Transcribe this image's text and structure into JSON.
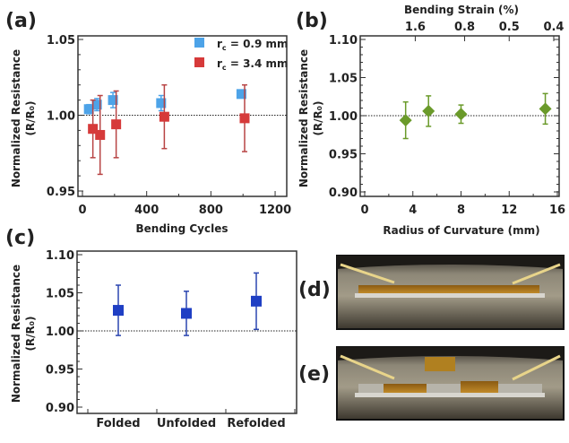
{
  "panel_labels": {
    "a": "(a)",
    "b": "(b)",
    "c": "(c)",
    "d": "(d)",
    "e": "(e)"
  },
  "ylabel": {
    "line1": "Normalized Resistance",
    "line2": "(R/R₀)"
  },
  "chart_data": [
    {
      "id": "a",
      "type": "scatter",
      "xlabel": "Bending Cycles",
      "ylabel": "Normalized Resistance (R/R₀)",
      "xlim": [
        0,
        1250
      ],
      "ylim": [
        0.95,
        1.05
      ],
      "xticks": [
        0,
        400,
        800,
        1200
      ],
      "xtick_labels": [
        "0",
        "400",
        "800",
        "1200"
      ],
      "yticks": [
        0.95,
        1.0,
        1.05
      ],
      "ytick_labels": [
        "0.95",
        "1.00",
        "1.05"
      ],
      "reference_line": 1.0,
      "legend_position": "top-right",
      "series": [
        {
          "name": "r_c = 0.9 mm",
          "legend": {
            "sym": "r",
            "sub": "c",
            "rest": " = 0.9 mm"
          },
          "color": "#4da3e8",
          "marker": "square",
          "x": [
            40,
            90,
            190,
            490,
            990
          ],
          "y": [
            1.004,
            1.007,
            1.01,
            1.008,
            1.014
          ],
          "err": [
            0.003,
            0.004,
            0.005,
            0.005,
            0.002
          ]
        },
        {
          "name": "r_c = 3.4 mm",
          "legend": {
            "sym": "r",
            "sub": "c",
            "rest": " = 3.4 mm"
          },
          "color": "#d63a3a",
          "errcolor": "#b84444",
          "marker": "square",
          "x": [
            65,
            110,
            210,
            510,
            1010
          ],
          "y": [
            0.991,
            0.987,
            0.994,
            0.999,
            0.998
          ],
          "err": [
            0.019,
            0.026,
            0.022,
            0.021,
            0.022
          ]
        }
      ]
    },
    {
      "id": "b",
      "type": "scatter",
      "xlabel": "Radius of Curvature (mm)",
      "x2label": "Bending Strain (%)",
      "ylabel": "Normalized Resistance (R/R₀)",
      "xlim": [
        0,
        16
      ],
      "ylim": [
        0.9,
        1.1
      ],
      "xticks": [
        0,
        4,
        8,
        12,
        16
      ],
      "xtick_labels": [
        "0",
        "4",
        "8",
        "12",
        "16"
      ],
      "x2ticks": [
        4.2,
        8.3,
        12,
        15.7
      ],
      "x2tick_labels": [
        "1.6",
        "0.8",
        "0.5",
        "0.4"
      ],
      "yticks": [
        0.9,
        0.95,
        1.0,
        1.05,
        1.1
      ],
      "ytick_labels": [
        "0.90",
        "0.95",
        "1.00",
        "1.05",
        "1.10"
      ],
      "reference_line": 1.0,
      "series": [
        {
          "color": "#6a9a2a",
          "marker": "diamond",
          "x": [
            3.4,
            5.3,
            8.0,
            15.0
          ],
          "y": [
            0.994,
            1.006,
            1.002,
            1.009
          ],
          "err": [
            0.024,
            0.02,
            0.012,
            0.02
          ]
        }
      ]
    },
    {
      "id": "c",
      "type": "scatter",
      "xlabel": "",
      "ylabel": "Normalized Resistance (R/R₀)",
      "categories": [
        "Folded",
        "Unfolded",
        "Refolded"
      ],
      "ylim": [
        0.9,
        1.1
      ],
      "yticks": [
        0.9,
        0.95,
        1.0,
        1.05,
        1.1
      ],
      "ytick_labels": [
        "0.90",
        "0.95",
        "1.00",
        "1.05",
        "1.10"
      ],
      "reference_line": 1.0,
      "series": [
        {
          "color": "#1f3fc4",
          "errcolor": "#2a45b0",
          "marker": "square",
          "y": [
            1.027,
            1.023,
            1.039
          ],
          "err_high": [
            1.06,
            1.052,
            1.076
          ],
          "err_low": [
            0.994,
            0.994,
            1.002
          ]
        }
      ]
    }
  ]
}
